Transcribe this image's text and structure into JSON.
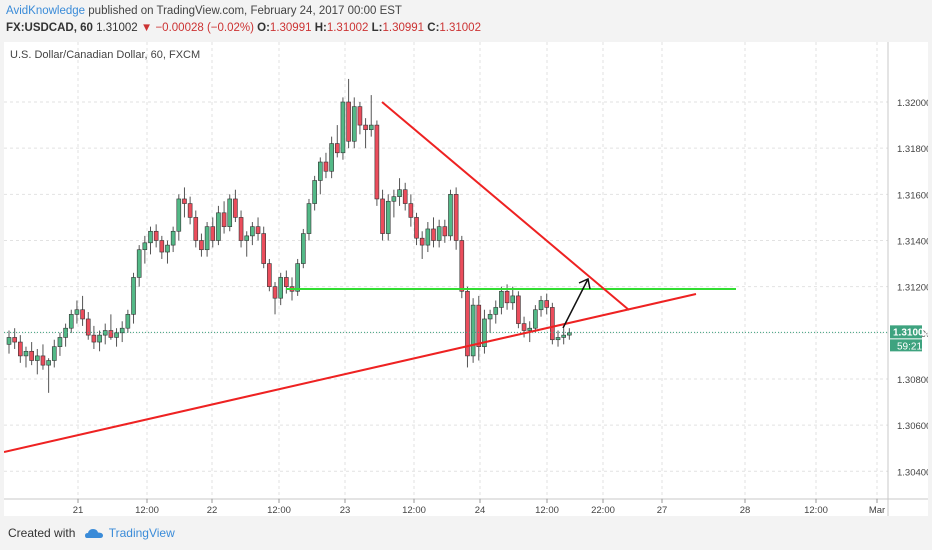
{
  "header": {
    "author": "AvidKnowledge",
    "published": "published on TradingView.com, February 24, 2017 00:00 EST",
    "symbol": "FX:USDCAD, 60",
    "price": "1.31002",
    "change": "▼ −0.00028 (−0.02%)",
    "o_label": "O:",
    "o": "1.30991",
    "h_label": "H:",
    "h": "1.31002",
    "l_label": "L:",
    "l": "1.30991",
    "c_label": "C:",
    "c": "1.31002"
  },
  "chart_data": {
    "type": "candlestick",
    "title": "U.S. Dollar/Canadian Dollar, 60, FXCM",
    "y_ticks": [
      "1.30400",
      "1.30600",
      "1.30800",
      "1.31000",
      "1.31200",
      "1.31400",
      "1.31600",
      "1.31800",
      "1.32000"
    ],
    "y_range": [
      1.3028,
      1.3226
    ],
    "x_ticks": [
      "21",
      "12:00",
      "22",
      "12:00",
      "23",
      "12:00",
      "24",
      "12:00",
      "22:00",
      "27",
      "28",
      "12:00",
      "Mar"
    ],
    "current_price_label": "1.31002",
    "countdown_label": "59:21",
    "colors": {
      "up": "#53b987",
      "down": "#eb4d5c",
      "trendline": "#ee2222",
      "resistance": "#33dd33",
      "price_line": "#3ea37f"
    },
    "annotations": [
      {
        "kind": "descending trendline",
        "from": [
          "23 ~08:00",
          1.319
        ],
        "to": [
          "24 ~23:00",
          1.3103
        ]
      },
      {
        "kind": "ascending trendline",
        "from": [
          "21 start",
          1.3045
        ],
        "to": [
          "24 ~23:00",
          1.311
        ]
      },
      {
        "kind": "horizontal resistance",
        "value": 1.3119
      },
      {
        "kind": "arrow",
        "from": [
          "24 ~16:00",
          1.3101
        ],
        "to": [
          "24 ~19:00",
          1.3118
        ]
      }
    ],
    "candles": [
      [
        1.3095,
        1.3101,
        1.3091,
        1.3098
      ],
      [
        1.3098,
        1.3102,
        1.3093,
        1.3096
      ],
      [
        1.3096,
        1.3099,
        1.3087,
        1.309
      ],
      [
        1.309,
        1.3094,
        1.3085,
        1.3092
      ],
      [
        1.3092,
        1.3096,
        1.3086,
        1.3088
      ],
      [
        1.3088,
        1.3093,
        1.3082,
        1.309
      ],
      [
        1.309,
        1.3095,
        1.3084,
        1.3086
      ],
      [
        1.3086,
        1.3089,
        1.3074,
        1.3088
      ],
      [
        1.3088,
        1.3097,
        1.3085,
        1.3094
      ],
      [
        1.3094,
        1.31,
        1.309,
        1.3098
      ],
      [
        1.3098,
        1.3104,
        1.3094,
        1.3102
      ],
      [
        1.3102,
        1.311,
        1.31,
        1.3108
      ],
      [
        1.3108,
        1.3114,
        1.3104,
        1.311
      ],
      [
        1.311,
        1.3116,
        1.3103,
        1.3106
      ],
      [
        1.3106,
        1.3109,
        1.3097,
        1.3099
      ],
      [
        1.3099,
        1.3103,
        1.3093,
        1.3096
      ],
      [
        1.3096,
        1.3101,
        1.3092,
        1.3099
      ],
      [
        1.3099,
        1.3104,
        1.3095,
        1.3101
      ],
      [
        1.3101,
        1.3108,
        1.3097,
        1.3098
      ],
      [
        1.3098,
        1.3102,
        1.3094,
        1.31
      ],
      [
        1.31,
        1.3105,
        1.3096,
        1.3102
      ],
      [
        1.3102,
        1.311,
        1.31,
        1.3108
      ],
      [
        1.3108,
        1.3126,
        1.3104,
        1.3124
      ],
      [
        1.3124,
        1.3138,
        1.312,
        1.3136
      ],
      [
        1.3136,
        1.3142,
        1.313,
        1.3139
      ],
      [
        1.3139,
        1.3146,
        1.3134,
        1.3144
      ],
      [
        1.3144,
        1.3147,
        1.3137,
        1.314
      ],
      [
        1.314,
        1.3142,
        1.3132,
        1.3135
      ],
      [
        1.3135,
        1.314,
        1.313,
        1.3138
      ],
      [
        1.3138,
        1.3146,
        1.3135,
        1.3144
      ],
      [
        1.3144,
        1.316,
        1.314,
        1.3158
      ],
      [
        1.3158,
        1.3163,
        1.315,
        1.3156
      ],
      [
        1.3156,
        1.3159,
        1.3147,
        1.315
      ],
      [
        1.315,
        1.3153,
        1.3137,
        1.314
      ],
      [
        1.314,
        1.3143,
        1.3133,
        1.3136
      ],
      [
        1.3136,
        1.3148,
        1.3133,
        1.3146
      ],
      [
        1.3146,
        1.315,
        1.3137,
        1.314
      ],
      [
        1.314,
        1.3155,
        1.3138,
        1.3152
      ],
      [
        1.3152,
        1.3157,
        1.3143,
        1.3146
      ],
      [
        1.3146,
        1.316,
        1.3144,
        1.3158
      ],
      [
        1.3158,
        1.3162,
        1.3148,
        1.315
      ],
      [
        1.315,
        1.3153,
        1.3137,
        1.314
      ],
      [
        1.314,
        1.3144,
        1.3133,
        1.3142
      ],
      [
        1.3142,
        1.3148,
        1.3138,
        1.3146
      ],
      [
        1.3146,
        1.315,
        1.314,
        1.3143
      ],
      [
        1.3143,
        1.3146,
        1.3128,
        1.313
      ],
      [
        1.313,
        1.3132,
        1.3118,
        1.312
      ],
      [
        1.312,
        1.3122,
        1.3108,
        1.3115
      ],
      [
        1.3115,
        1.3126,
        1.3112,
        1.3124
      ],
      [
        1.3124,
        1.3127,
        1.3117,
        1.312
      ],
      [
        1.312,
        1.3124,
        1.3114,
        1.3118
      ],
      [
        1.3118,
        1.3132,
        1.3116,
        1.313
      ],
      [
        1.313,
        1.3145,
        1.3128,
        1.3143
      ],
      [
        1.3143,
        1.3158,
        1.314,
        1.3156
      ],
      [
        1.3156,
        1.3168,
        1.3153,
        1.3166
      ],
      [
        1.3166,
        1.3176,
        1.316,
        1.3174
      ],
      [
        1.3174,
        1.3178,
        1.3167,
        1.317
      ],
      [
        1.317,
        1.3185,
        1.3167,
        1.3182
      ],
      [
        1.3182,
        1.319,
        1.3176,
        1.3178
      ],
      [
        1.3178,
        1.3202,
        1.3175,
        1.32
      ],
      [
        1.32,
        1.321,
        1.318,
        1.3183
      ],
      [
        1.3183,
        1.3202,
        1.318,
        1.3198
      ],
      [
        1.3198,
        1.32,
        1.3186,
        1.319
      ],
      [
        1.319,
        1.3193,
        1.318,
        1.3188
      ],
      [
        1.3188,
        1.3203,
        1.3185,
        1.319
      ],
      [
        1.319,
        1.3192,
        1.3155,
        1.3158
      ],
      [
        1.3158,
        1.3162,
        1.314,
        1.3143
      ],
      [
        1.3143,
        1.316,
        1.314,
        1.3157
      ],
      [
        1.3157,
        1.3162,
        1.315,
        1.3159
      ],
      [
        1.3159,
        1.3167,
        1.3155,
        1.3162
      ],
      [
        1.3162,
        1.3165,
        1.3153,
        1.3156
      ],
      [
        1.3156,
        1.316,
        1.3146,
        1.315
      ],
      [
        1.315,
        1.3152,
        1.3138,
        1.3141
      ],
      [
        1.3141,
        1.3144,
        1.3132,
        1.3138
      ],
      [
        1.3138,
        1.3148,
        1.3135,
        1.3145
      ],
      [
        1.3145,
        1.315,
        1.3137,
        1.314
      ],
      [
        1.314,
        1.3149,
        1.3137,
        1.3146
      ],
      [
        1.3146,
        1.3149,
        1.3139,
        1.3142
      ],
      [
        1.3142,
        1.3162,
        1.314,
        1.316
      ],
      [
        1.316,
        1.3163,
        1.3136,
        1.314
      ],
      [
        1.314,
        1.3142,
        1.3115,
        1.3118
      ],
      [
        1.3118,
        1.312,
        1.3085,
        1.309
      ],
      [
        1.309,
        1.3115,
        1.3087,
        1.3112
      ],
      [
        1.3112,
        1.3116,
        1.3088,
        1.3094
      ],
      [
        1.3094,
        1.311,
        1.3091,
        1.3106
      ],
      [
        1.3106,
        1.311,
        1.31,
        1.3108
      ],
      [
        1.3108,
        1.3114,
        1.3104,
        1.3111
      ],
      [
        1.3111,
        1.312,
        1.3108,
        1.3118
      ],
      [
        1.3118,
        1.3121,
        1.311,
        1.3113
      ],
      [
        1.3113,
        1.312,
        1.311,
        1.3116
      ],
      [
        1.3116,
        1.3118,
        1.3102,
        1.3104
      ],
      [
        1.3104,
        1.3107,
        1.3098,
        1.3101
      ],
      [
        1.3101,
        1.3105,
        1.3096,
        1.3102
      ],
      [
        1.3102,
        1.3112,
        1.31,
        1.311
      ],
      [
        1.311,
        1.3116,
        1.3107,
        1.3114
      ],
      [
        1.3114,
        1.3117,
        1.3108,
        1.3111
      ],
      [
        1.3111,
        1.3113,
        1.3095,
        1.3097
      ],
      [
        1.3097,
        1.3101,
        1.3094,
        1.3098
      ],
      [
        1.3098,
        1.3102,
        1.3095,
        1.3099
      ],
      [
        1.3099,
        1.3102,
        1.3097,
        1.31
      ]
    ]
  }
}
